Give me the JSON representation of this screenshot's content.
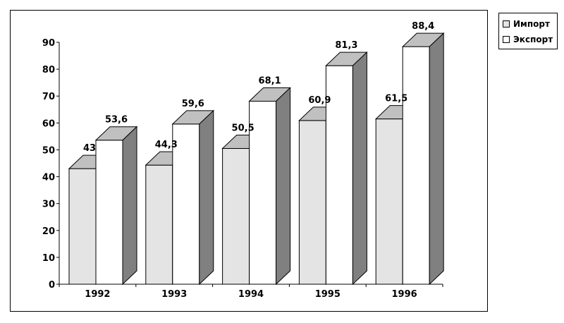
{
  "chart_data": {
    "type": "bar",
    "style": "3d-clustered",
    "categories": [
      "1992",
      "1993",
      "1994",
      "1995",
      "1996"
    ],
    "series": [
      {
        "name": "Импорт",
        "values": [
          43,
          44.3,
          50.5,
          60.9,
          61.5
        ],
        "labels": [
          "43",
          "44,3",
          "50,5",
          "60,9",
          "61,5"
        ],
        "color": "#e4e4e4"
      },
      {
        "name": "Экспорт",
        "values": [
          53.6,
          59.6,
          68.1,
          81.3,
          88.4
        ],
        "labels": [
          "53,6",
          "59,6",
          "68,1",
          "81,3",
          "88,4"
        ],
        "color": "#ffffff"
      }
    ],
    "yticks": [
      0,
      10,
      20,
      30,
      40,
      50,
      60,
      70,
      80,
      90
    ],
    "ylim": [
      0,
      90
    ],
    "grid": false,
    "legend": "right",
    "side_color": "#808080",
    "top_color": "#c0c0c0"
  }
}
